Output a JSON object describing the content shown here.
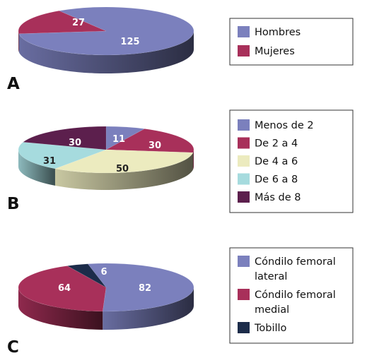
{
  "chart_data": [
    {
      "type": "pie",
      "panel": "A",
      "slices": [
        {
          "label": "Hombres",
          "value": 125,
          "color": "#7b80bd"
        },
        {
          "label": "Mujeres",
          "value": 27,
          "color": "#a8305a"
        }
      ],
      "legend_placement": "right"
    },
    {
      "type": "pie",
      "panel": "B",
      "slices": [
        {
          "label": "Menos de 2",
          "value": 11,
          "color": "#7b80bd"
        },
        {
          "label": "De 2 a 4",
          "value": 30,
          "color": "#a8305a"
        },
        {
          "label": "De 4 a 6",
          "value": 50,
          "color": "#ecebbf"
        },
        {
          "label": "De 6 a 8",
          "value": 31,
          "color": "#a6dbde"
        },
        {
          "label": "Más de 8",
          "value": 30,
          "color": "#5c1f4d"
        }
      ],
      "legend_placement": "right"
    },
    {
      "type": "pie",
      "panel": "C",
      "slices": [
        {
          "label": "Cóndilo femoral lateral",
          "value": 82,
          "color": "#7b80bd"
        },
        {
          "label": "Cóndilo femoral medial",
          "value": 64,
          "color": "#a8305a"
        },
        {
          "label": "Tobillo",
          "value": 6,
          "color": "#1c2c4a"
        }
      ],
      "legend_placement": "right"
    }
  ]
}
